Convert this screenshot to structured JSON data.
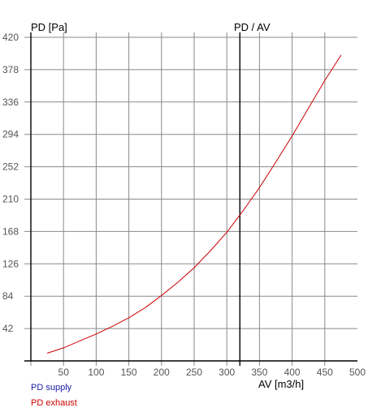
{
  "chart_data": {
    "type": "line",
    "xlabel": "AV [m3/h]",
    "ylabel": "PD [Pa]",
    "marker_label": "PD / AV",
    "xlim": [
      0,
      500
    ],
    "ylim": [
      0,
      420
    ],
    "x_ticks": [
      50,
      100,
      150,
      200,
      250,
      300,
      350,
      400,
      450,
      500
    ],
    "y_ticks": [
      42,
      84,
      126,
      168,
      210,
      252,
      294,
      336,
      378,
      420
    ],
    "grid": true,
    "operating_point_x": 320,
    "legend_position": "bottom-left",
    "series": [
      {
        "name": "PD supply",
        "color": "#1a1aa6",
        "x": [],
        "y": []
      },
      {
        "name": "PD exhaust",
        "color": "#cc0000",
        "x": [
          25,
          50,
          75,
          100,
          125,
          150,
          175,
          200,
          225,
          250,
          275,
          300,
          325,
          350,
          375,
          400,
          425,
          450,
          475
        ],
        "y": [
          10,
          17,
          26,
          35,
          45,
          56,
          69,
          85,
          102,
          121,
          143,
          167,
          195,
          225,
          258,
          292,
          328,
          364,
          397
        ]
      }
    ]
  }
}
